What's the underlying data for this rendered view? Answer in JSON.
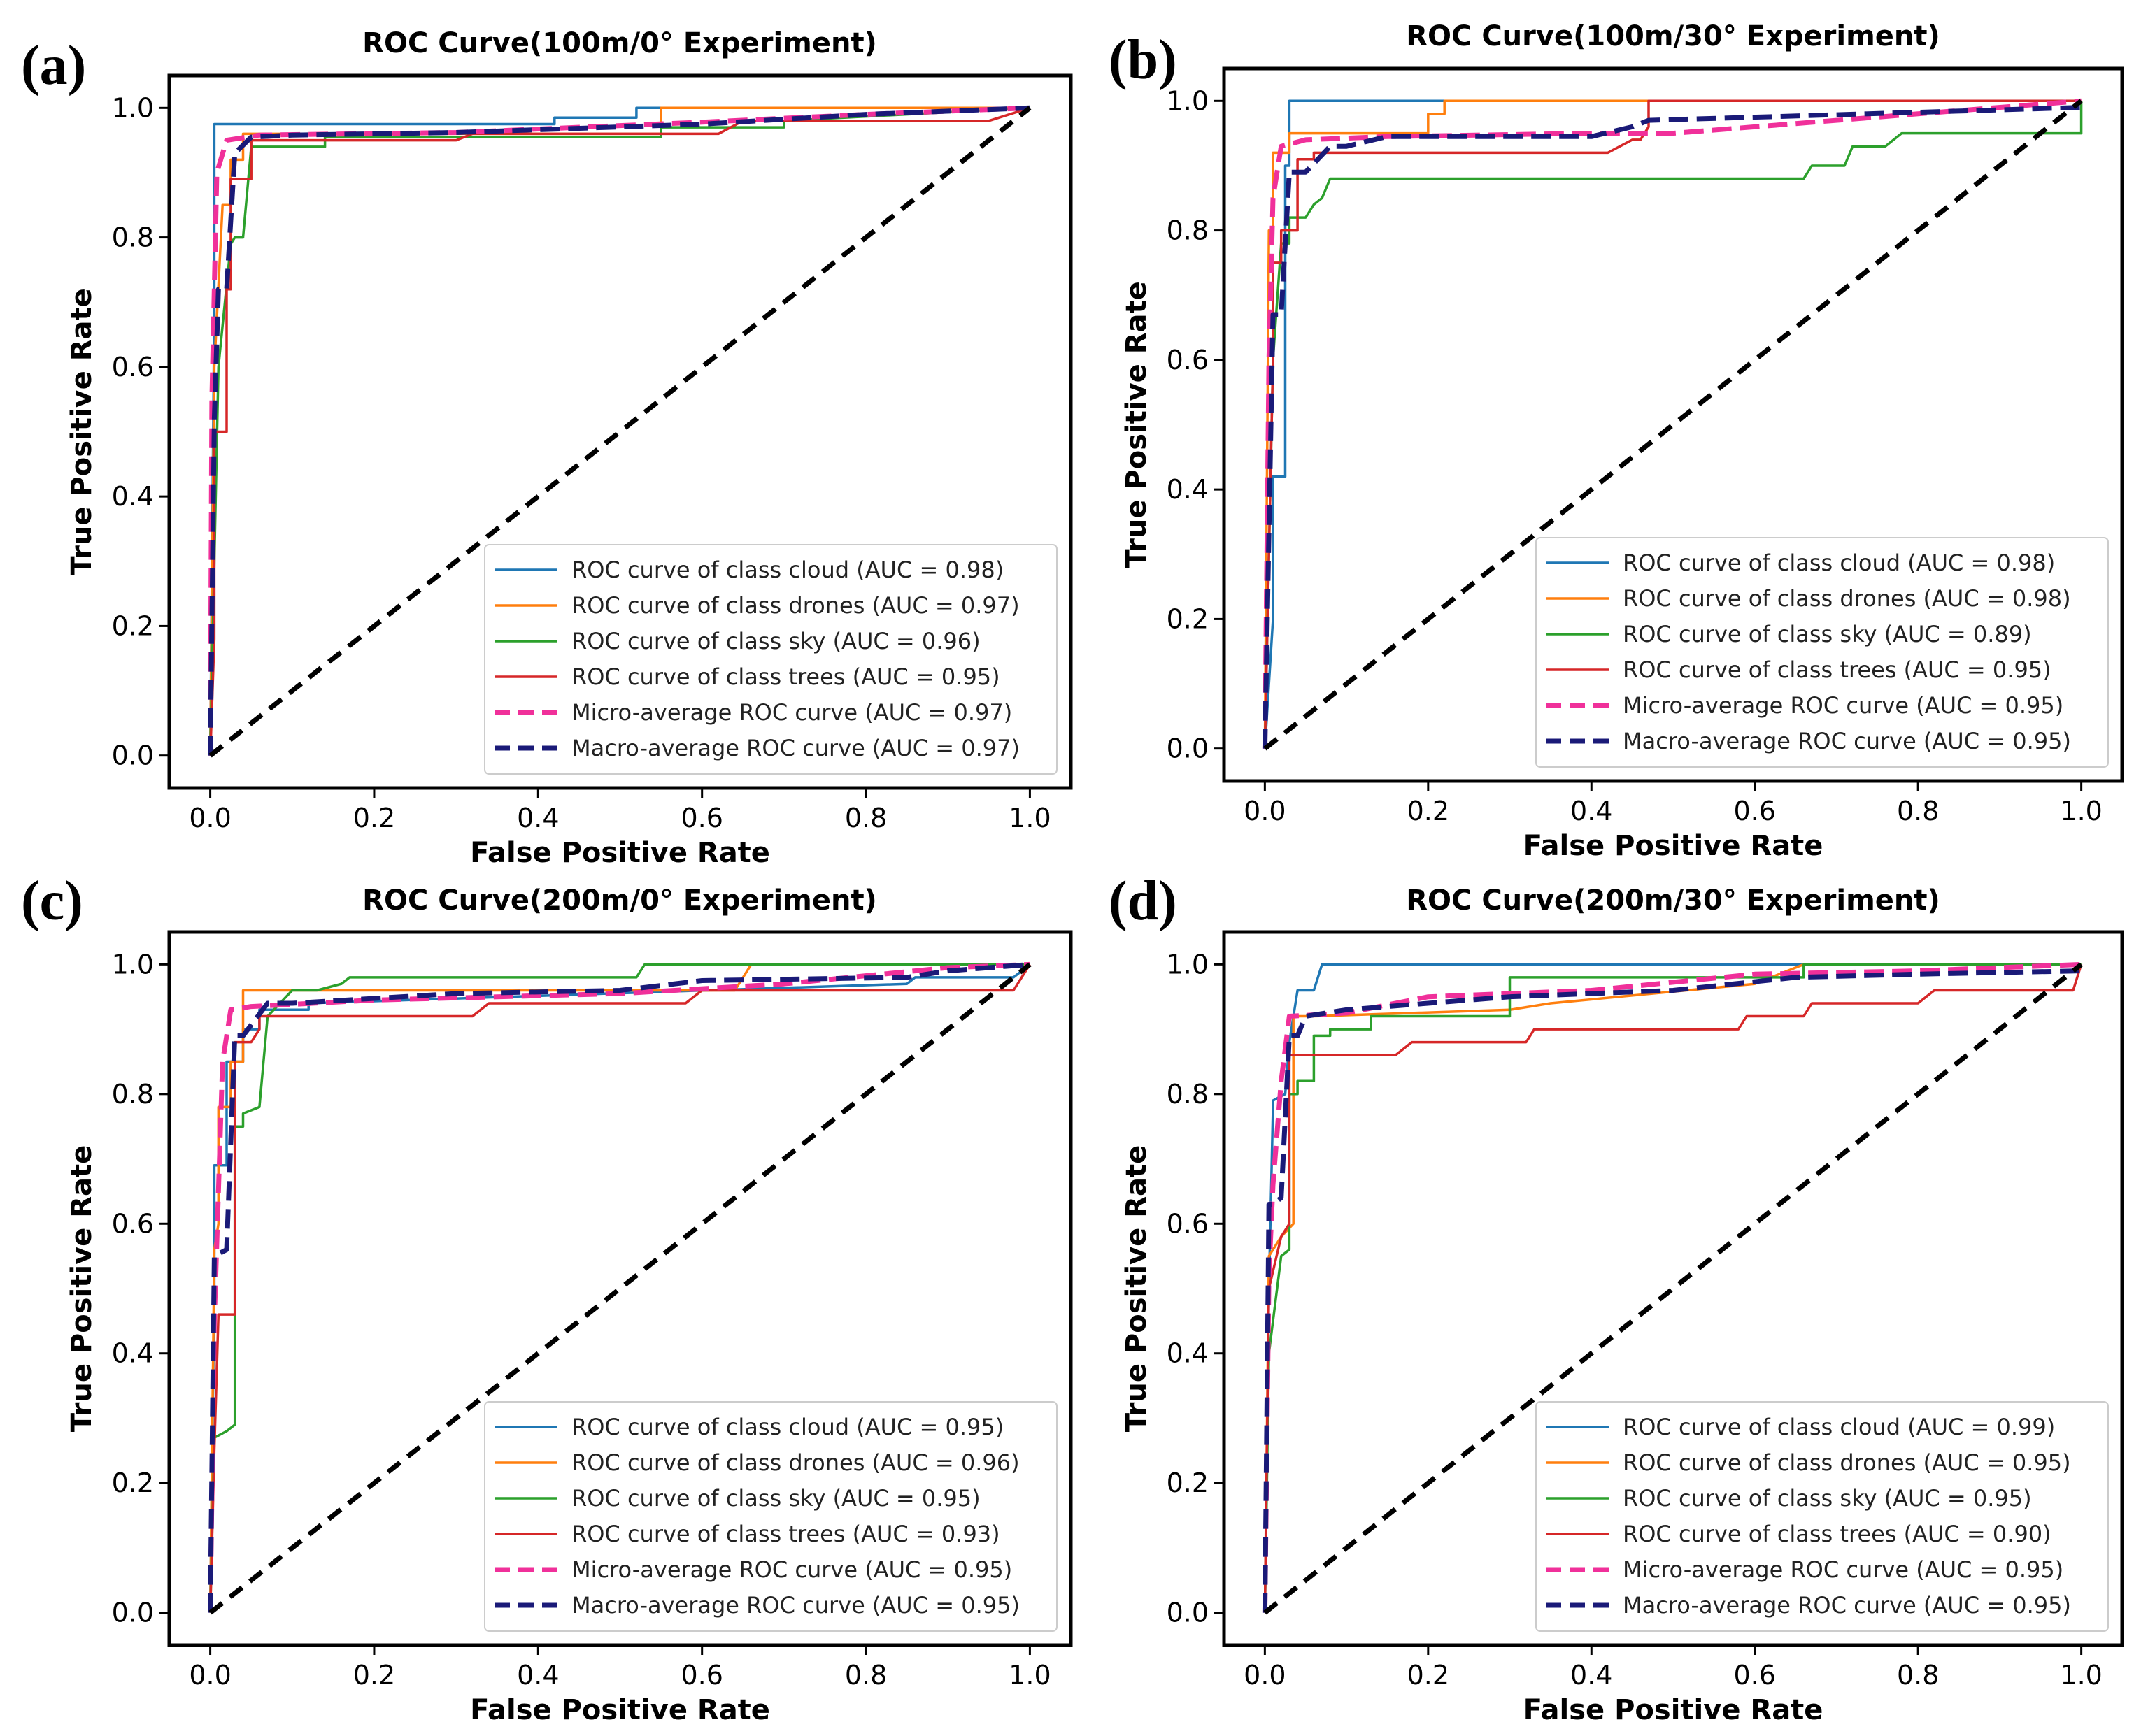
{
  "chart_data": [
    {
      "type": "line",
      "panel_label": "(a)",
      "title": "ROC Curve(100m/0° Experiment)",
      "xlabel": "False Positive Rate",
      "ylabel": "True Positive Rate",
      "xlim": [
        -0.05,
        1.05
      ],
      "ylim": [
        -0.05,
        1.05
      ],
      "x_ticks": [
        "0.0",
        "0.2",
        "0.4",
        "0.6",
        "0.8",
        "1.0"
      ],
      "y_ticks": [
        "0.0",
        "0.2",
        "0.4",
        "0.6",
        "0.8",
        "1.0"
      ],
      "legend_position": "lower-right",
      "series": [
        {
          "name": "ROC curve of class cloud (AUC = 0.98)",
          "color": "#1f77b4",
          "dash": "solid",
          "x": [
            0,
            0.005,
            0.005,
            0.42,
            0.42,
            0.52,
            0.52,
            0.88,
            1.0
          ],
          "y": [
            0,
            0.69,
            0.975,
            0.975,
            0.985,
            0.985,
            1.0,
            1.0,
            1.0
          ]
        },
        {
          "name": "ROC curve of class drones (AUC = 0.97)",
          "color": "#ff7f0e",
          "dash": "solid",
          "x": [
            0,
            0.005,
            0.015,
            0.025,
            0.025,
            0.04,
            0.04,
            0.3,
            0.55,
            0.55,
            0.82,
            1.0
          ],
          "y": [
            0,
            0.6,
            0.85,
            0.85,
            0.92,
            0.92,
            0.96,
            0.96,
            0.96,
            1.0,
            1.0,
            1.0
          ]
        },
        {
          "name": "ROC curve of class sky (AUC = 0.96)",
          "color": "#2ca02c",
          "dash": "solid",
          "x": [
            0,
            0.01,
            0.025,
            0.03,
            0.04,
            0.05,
            0.14,
            0.14,
            0.55,
            0.55,
            0.7,
            0.7,
            1.0
          ],
          "y": [
            0,
            0.6,
            0.79,
            0.8,
            0.8,
            0.94,
            0.94,
            0.955,
            0.955,
            0.97,
            0.97,
            0.98,
            1.0
          ]
        },
        {
          "name": "ROC curve of class trees (AUC = 0.95)",
          "color": "#d62728",
          "dash": "solid",
          "x": [
            0,
            0.005,
            0.005,
            0.02,
            0.02,
            0.025,
            0.025,
            0.05,
            0.05,
            0.3,
            0.32,
            0.62,
            0.65,
            0.95,
            1.0
          ],
          "y": [
            0,
            0.18,
            0.5,
            0.5,
            0.72,
            0.72,
            0.89,
            0.89,
            0.95,
            0.95,
            0.96,
            0.96,
            0.98,
            0.98,
            1.0
          ]
        },
        {
          "name": "Micro-average ROC curve (AUC = 0.97)",
          "color": "#f0309a",
          "dash": "dash",
          "x": [
            0,
            0.002,
            0.008,
            0.02,
            0.06,
            0.3,
            0.6,
            0.8,
            1.0
          ],
          "y": [
            0,
            0.55,
            0.9,
            0.95,
            0.958,
            0.962,
            0.978,
            0.99,
            1.0
          ]
        },
        {
          "name": "Macro-average ROC curve (AUC = 0.97)",
          "color": "#1a1a78",
          "dash": "dash",
          "x": [
            0,
            0.005,
            0.01,
            0.02,
            0.03,
            0.05,
            0.1,
            0.3,
            0.6,
            0.8,
            1.0
          ],
          "y": [
            0,
            0.52,
            0.72,
            0.72,
            0.93,
            0.955,
            0.958,
            0.962,
            0.975,
            0.99,
            1.0
          ]
        },
        {
          "name": "chance",
          "color": "#000000",
          "dash": "chance",
          "x": [
            0,
            1
          ],
          "y": [
            0,
            1
          ]
        }
      ]
    },
    {
      "type": "line",
      "panel_label": "(b)",
      "title": "ROC Curve(100m/30° Experiment)",
      "xlabel": "False Positive Rate",
      "ylabel": "True Positive Rate",
      "xlim": [
        -0.05,
        1.05
      ],
      "ylim": [
        -0.05,
        1.05
      ],
      "x_ticks": [
        "0.0",
        "0.2",
        "0.4",
        "0.6",
        "0.8",
        "1.0"
      ],
      "y_ticks": [
        "0.0",
        "0.2",
        "0.4",
        "0.6",
        "0.8",
        "1.0"
      ],
      "legend_position": "lower-right",
      "series": [
        {
          "name": "ROC curve of class cloud (AUC = 0.98)",
          "color": "#1f77b4",
          "dash": "solid",
          "x": [
            0,
            0.01,
            0.01,
            0.025,
            0.025,
            0.03,
            0.03,
            1.0
          ],
          "y": [
            0,
            0.2,
            0.42,
            0.42,
            0.9,
            0.9,
            1.0,
            1.0
          ]
        },
        {
          "name": "ROC curve of class drones (AUC = 0.98)",
          "color": "#ff7f0e",
          "dash": "solid",
          "x": [
            0,
            0.005,
            0.01,
            0.01,
            0.03,
            0.03,
            0.2,
            0.2,
            0.22,
            0.22,
            1.0
          ],
          "y": [
            0,
            0.8,
            0.8,
            0.92,
            0.92,
            0.95,
            0.95,
            0.98,
            0.98,
            1.0,
            1.0
          ]
        },
        {
          "name": "ROC curve of class sky (AUC = 0.89)",
          "color": "#2ca02c",
          "dash": "solid",
          "x": [
            0,
            0.01,
            0.02,
            0.03,
            0.03,
            0.05,
            0.06,
            0.07,
            0.08,
            0.66,
            0.67,
            0.71,
            0.72,
            0.76,
            0.78,
            1.0,
            1.0
          ],
          "y": [
            0,
            0.6,
            0.78,
            0.78,
            0.82,
            0.82,
            0.84,
            0.85,
            0.88,
            0.88,
            0.9,
            0.9,
            0.93,
            0.93,
            0.95,
            0.95,
            1.0
          ]
        },
        {
          "name": "ROC curve of class trees (AUC = 0.95)",
          "color": "#d62728",
          "dash": "solid",
          "x": [
            0,
            0.005,
            0.01,
            0.01,
            0.02,
            0.02,
            0.04,
            0.04,
            0.06,
            0.06,
            0.42,
            0.45,
            0.46,
            0.47,
            0.47,
            1.0
          ],
          "y": [
            0,
            0.3,
            0.6,
            0.75,
            0.75,
            0.8,
            0.8,
            0.91,
            0.91,
            0.92,
            0.92,
            0.94,
            0.94,
            0.96,
            1.0,
            1.0
          ]
        },
        {
          "name": "Micro-average ROC curve (AUC = 0.95)",
          "color": "#f0309a",
          "dash": "dash",
          "x": [
            0,
            0.005,
            0.01,
            0.02,
            0.05,
            0.15,
            0.4,
            0.5,
            0.6,
            0.8,
            1.0
          ],
          "y": [
            0,
            0.6,
            0.85,
            0.93,
            0.94,
            0.945,
            0.95,
            0.95,
            0.96,
            0.98,
            1.0
          ]
        },
        {
          "name": "Macro-average ROC curve (AUC = 0.95)",
          "color": "#1a1a78",
          "dash": "dash",
          "x": [
            0,
            0.01,
            0.02,
            0.03,
            0.05,
            0.08,
            0.1,
            0.15,
            0.4,
            0.45,
            0.47,
            1.0
          ],
          "y": [
            0,
            0.67,
            0.67,
            0.89,
            0.89,
            0.93,
            0.93,
            0.945,
            0.945,
            0.96,
            0.97,
            0.99
          ]
        },
        {
          "name": "chance",
          "color": "#000000",
          "dash": "chance",
          "x": [
            0,
            1
          ],
          "y": [
            0,
            1
          ]
        }
      ]
    },
    {
      "type": "line",
      "panel_label": "(c)",
      "title": "ROC Curve(200m/0° Experiment)",
      "xlabel": "False Positive Rate",
      "ylabel": "True Positive Rate",
      "xlim": [
        -0.05,
        1.05
      ],
      "ylim": [
        -0.05,
        1.05
      ],
      "x_ticks": [
        "0.0",
        "0.2",
        "0.4",
        "0.6",
        "0.8",
        "1.0"
      ],
      "y_ticks": [
        "0.0",
        "0.2",
        "0.4",
        "0.6",
        "0.8",
        "1.0"
      ],
      "legend_position": "lower-right",
      "series": [
        {
          "name": "ROC curve of class cloud (AUC = 0.95)",
          "color": "#1f77b4",
          "dash": "solid",
          "x": [
            0,
            0.005,
            0.005,
            0.02,
            0.02,
            0.04,
            0.04,
            0.06,
            0.06,
            0.12,
            0.12,
            0.85,
            0.86,
            0.98,
            1.0
          ],
          "y": [
            0,
            0.5,
            0.69,
            0.69,
            0.85,
            0.85,
            0.9,
            0.9,
            0.93,
            0.93,
            0.94,
            0.97,
            0.98,
            0.98,
            1.0
          ]
        },
        {
          "name": "ROC curve of class drones (AUC = 0.96)",
          "color": "#ff7f0e",
          "dash": "solid",
          "x": [
            0,
            0.005,
            0.01,
            0.01,
            0.025,
            0.025,
            0.04,
            0.04,
            0.64,
            0.66,
            1.0
          ],
          "y": [
            0,
            0.56,
            0.6,
            0.78,
            0.78,
            0.85,
            0.85,
            0.96,
            0.96,
            1.0,
            1.0
          ]
        },
        {
          "name": "ROC curve of class sky (AUC = 0.95)",
          "color": "#2ca02c",
          "dash": "solid",
          "x": [
            0,
            0.005,
            0.02,
            0.03,
            0.03,
            0.04,
            0.04,
            0.06,
            0.07,
            0.1,
            0.13,
            0.16,
            0.17,
            0.52,
            0.53,
            1.0
          ],
          "y": [
            0,
            0.27,
            0.28,
            0.29,
            0.75,
            0.75,
            0.77,
            0.78,
            0.92,
            0.96,
            0.96,
            0.97,
            0.98,
            0.98,
            1.0,
            1.0
          ]
        },
        {
          "name": "ROC curve of class trees (AUC = 0.93)",
          "color": "#d62728",
          "dash": "solid",
          "x": [
            0,
            0.005,
            0.01,
            0.01,
            0.03,
            0.03,
            0.05,
            0.06,
            0.06,
            0.32,
            0.34,
            0.58,
            0.6,
            0.98,
            1.0
          ],
          "y": [
            0,
            0.25,
            0.46,
            0.46,
            0.46,
            0.88,
            0.88,
            0.9,
            0.92,
            0.92,
            0.94,
            0.94,
            0.96,
            0.96,
            1.0
          ]
        },
        {
          "name": "Micro-average ROC curve (AUC = 0.95)",
          "color": "#f0309a",
          "dash": "dash",
          "x": [
            0,
            0.005,
            0.015,
            0.025,
            0.05,
            0.2,
            0.5,
            0.7,
            0.9,
            1.0
          ],
          "y": [
            0,
            0.45,
            0.85,
            0.93,
            0.935,
            0.945,
            0.955,
            0.97,
            0.995,
            1.0
          ]
        },
        {
          "name": "Macro-average ROC curve (AUC = 0.95)",
          "color": "#1a1a78",
          "dash": "dash",
          "x": [
            0,
            0.005,
            0.02,
            0.03,
            0.04,
            0.07,
            0.1,
            0.3,
            0.5,
            0.6,
            0.85,
            0.9,
            1.0
          ],
          "y": [
            0,
            0.55,
            0.56,
            0.89,
            0.89,
            0.94,
            0.94,
            0.955,
            0.96,
            0.975,
            0.98,
            0.99,
            1.0
          ]
        },
        {
          "name": "chance",
          "color": "#000000",
          "dash": "chance",
          "x": [
            0,
            1
          ],
          "y": [
            0,
            1
          ]
        }
      ]
    },
    {
      "type": "line",
      "panel_label": "(d)",
      "title": "ROC Curve(200m/30° Experiment)",
      "xlabel": "False Positive Rate",
      "ylabel": "True Positive Rate",
      "xlim": [
        -0.05,
        1.05
      ],
      "ylim": [
        -0.05,
        1.05
      ],
      "x_ticks": [
        "0.0",
        "0.2",
        "0.4",
        "0.6",
        "0.8",
        "1.0"
      ],
      "y_ticks": [
        "0.0",
        "0.2",
        "0.4",
        "0.6",
        "0.8",
        "1.0"
      ],
      "legend_position": "lower-right",
      "series": [
        {
          "name": "ROC curve of class cloud (AUC = 0.99)",
          "color": "#1f77b4",
          "dash": "solid",
          "x": [
            0,
            0.005,
            0.01,
            0.01,
            0.025,
            0.03,
            0.04,
            0.04,
            0.06,
            0.07,
            1.0
          ],
          "y": [
            0,
            0.5,
            0.78,
            0.79,
            0.8,
            0.88,
            0.96,
            0.96,
            0.96,
            1.0,
            1.0
          ]
        },
        {
          "name": "ROC curve of class drones (AUC = 0.95)",
          "color": "#ff7f0e",
          "dash": "solid",
          "x": [
            0,
            0.005,
            0.02,
            0.02,
            0.035,
            0.035,
            0.06,
            0.3,
            0.35,
            0.6,
            0.62,
            0.64,
            0.66,
            1.0
          ],
          "y": [
            0,
            0.55,
            0.58,
            0.58,
            0.6,
            0.92,
            0.92,
            0.93,
            0.94,
            0.97,
            0.98,
            0.99,
            1.0,
            1.0
          ]
        },
        {
          "name": "ROC curve of class sky (AUC = 0.95)",
          "color": "#2ca02c",
          "dash": "solid",
          "x": [
            0,
            0.005,
            0.02,
            0.03,
            0.03,
            0.04,
            0.04,
            0.06,
            0.06,
            0.08,
            0.08,
            0.13,
            0.13,
            0.3,
            0.3,
            0.66,
            0.66,
            1.0
          ],
          "y": [
            0,
            0.4,
            0.55,
            0.56,
            0.8,
            0.8,
            0.82,
            0.82,
            0.89,
            0.89,
            0.9,
            0.9,
            0.92,
            0.92,
            0.98,
            0.98,
            1.0,
            1.0
          ]
        },
        {
          "name": "ROC curve of class trees (AUC = 0.90)",
          "color": "#d62728",
          "dash": "solid",
          "x": [
            0,
            0.005,
            0.02,
            0.03,
            0.03,
            0.16,
            0.18,
            0.32,
            0.33,
            0.58,
            0.59,
            0.66,
            0.67,
            0.8,
            0.82,
            0.99,
            1.0
          ],
          "y": [
            0,
            0.5,
            0.58,
            0.6,
            0.86,
            0.86,
            0.88,
            0.88,
            0.9,
            0.9,
            0.92,
            0.92,
            0.94,
            0.94,
            0.96,
            0.96,
            1.0
          ]
        },
        {
          "name": "Micro-average ROC curve (AUC = 0.95)",
          "color": "#f0309a",
          "dash": "dash",
          "x": [
            0,
            0.005,
            0.01,
            0.02,
            0.03,
            0.1,
            0.2,
            0.4,
            0.6,
            0.8,
            1.0
          ],
          "y": [
            0,
            0.52,
            0.66,
            0.82,
            0.92,
            0.925,
            0.95,
            0.96,
            0.985,
            0.99,
            1.0
          ]
        },
        {
          "name": "Macro-average ROC curve (AUC = 0.95)",
          "color": "#1a1a78",
          "dash": "dash",
          "x": [
            0,
            0.005,
            0.01,
            0.02,
            0.03,
            0.04,
            0.05,
            0.1,
            0.3,
            0.5,
            0.65,
            0.8,
            1.0
          ],
          "y": [
            0,
            0.63,
            0.63,
            0.64,
            0.89,
            0.89,
            0.92,
            0.93,
            0.95,
            0.96,
            0.98,
            0.985,
            0.99
          ]
        },
        {
          "name": "chance",
          "color": "#000000",
          "dash": "chance",
          "x": [
            0,
            1
          ],
          "y": [
            0,
            1
          ]
        }
      ]
    }
  ]
}
